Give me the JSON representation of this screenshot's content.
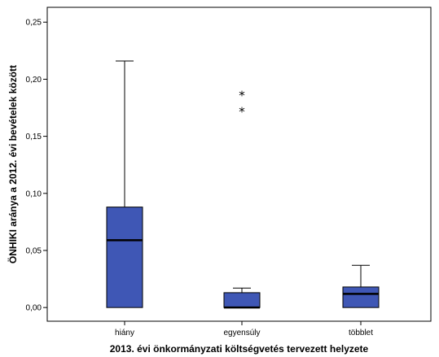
{
  "chart_data": {
    "type": "boxplot",
    "title": "",
    "xlabel": "2013. évi önkormányzati költségvetés tervezett helyzete",
    "ylabel": "ÖNHIKI aránya a 2012. évi bevételek között",
    "ylim": [
      -0.012,
      0.263
    ],
    "yticks": [
      "0,00",
      "0,05",
      "0,10",
      "0,15",
      "0,20",
      "0,25"
    ],
    "ytick_values": [
      0.0,
      0.05,
      0.1,
      0.15,
      0.2,
      0.25
    ],
    "grid": false,
    "legend": "none",
    "box_color": "#3f57b5",
    "categories": [
      "hiány",
      "egyensúly",
      "többlet"
    ],
    "boxes": [
      {
        "category": "hiány",
        "min": 0.0,
        "q1": 0.0,
        "median": 0.059,
        "q3": 0.088,
        "max": 0.216,
        "outliers": []
      },
      {
        "category": "egyensúly",
        "min": 0.0,
        "q1": 0.0,
        "median": 0.0,
        "q3": 0.013,
        "max": 0.017,
        "outliers": [
          0.187,
          0.173
        ]
      },
      {
        "category": "többlet",
        "min": 0.0,
        "q1": 0.0,
        "median": 0.012,
        "q3": 0.018,
        "max": 0.037,
        "outliers": []
      }
    ],
    "outlier_marker": "*"
  }
}
